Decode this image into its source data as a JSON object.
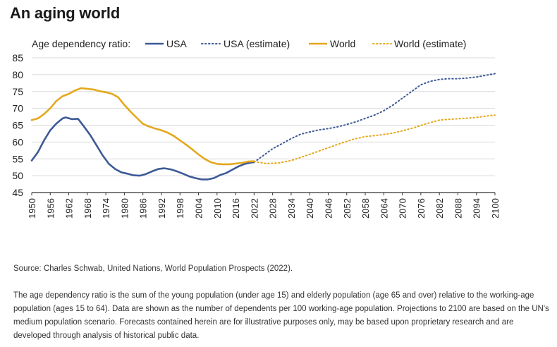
{
  "page": {
    "title": "An aging world",
    "source": "Source: Charles Schwab, United Nations, World Population Prospects (2022).",
    "note": "The age dependency ratio is the sum of the young population (under age 15) and elderly population (age 65 and over) relative to the working-age population (ages 15 to 64). Data are shown as the number of dependents per 100 working-age population. Projections to 2100 are based on the UN's medium population scenario. Forecasts contained herein are for illustrative purposes only, may be based upon proprietary research and are developed through analysis of historical public data."
  },
  "chart_data": {
    "type": "line",
    "legend_title": "Age dependency ratio:",
    "legend_position": "top",
    "xlim": [
      1950,
      2100
    ],
    "ylim": [
      45,
      85
    ],
    "y_ticks": [
      45,
      50,
      55,
      60,
      65,
      70,
      75,
      80,
      85
    ],
    "x_ticks": [
      1950,
      1956,
      1962,
      1968,
      1974,
      1980,
      1986,
      1992,
      1998,
      2004,
      2010,
      2016,
      2022,
      2028,
      2034,
      2040,
      2046,
      2052,
      2058,
      2064,
      2070,
      2076,
      2082,
      2088,
      2094,
      2100
    ],
    "grid": "horizontal",
    "colors": {
      "usa": "#3d5a96",
      "world": "#e4a81d",
      "grid": "#d9d9d9",
      "axis": "#333333"
    },
    "series": [
      {
        "name": "USA",
        "style": "solid",
        "color": "#3d5a96",
        "x": [
          1950,
          1952,
          1954,
          1956,
          1958,
          1960,
          1961,
          1963,
          1965,
          1967,
          1969,
          1971,
          1973,
          1975,
          1977,
          1979,
          1981,
          1983,
          1985,
          1987,
          1989,
          1991,
          1993,
          1995,
          1997,
          1999,
          2001,
          2003,
          2005,
          2007,
          2009,
          2011,
          2013,
          2015,
          2017,
          2019,
          2021,
          2022
        ],
        "y": [
          54.5,
          57,
          60.5,
          63.5,
          65.5,
          67,
          67.3,
          66.8,
          66.9,
          64.5,
          62,
          59,
          56,
          53.5,
          52,
          51,
          50.6,
          50.1,
          50,
          50.5,
          51.3,
          52,
          52.2,
          51.9,
          51.3,
          50.6,
          49.8,
          49.3,
          48.9,
          48.9,
          49.3,
          50.2,
          50.8,
          51.8,
          52.8,
          53.5,
          53.9,
          54
        ]
      },
      {
        "name": "USA (estimate)",
        "style": "dotted",
        "color": "#3d5a96",
        "x": [
          2022,
          2025,
          2028,
          2031,
          2034,
          2037,
          2040,
          2043,
          2046,
          2049,
          2052,
          2055,
          2058,
          2061,
          2064,
          2067,
          2070,
          2073,
          2076,
          2079,
          2082,
          2085,
          2088,
          2091,
          2094,
          2097,
          2100
        ],
        "y": [
          54,
          56,
          58,
          59.5,
          61,
          62.3,
          63,
          63.6,
          64,
          64.5,
          65.2,
          66,
          67,
          68,
          69.3,
          71,
          73,
          75,
          77,
          78,
          78.6,
          78.8,
          78.8,
          79,
          79.3,
          79.8,
          80.3
        ]
      },
      {
        "name": "World",
        "style": "solid",
        "color": "#e4a81d",
        "x": [
          1950,
          1952,
          1954,
          1956,
          1958,
          1960,
          1962,
          1964,
          1966,
          1968,
          1970,
          1972,
          1974,
          1976,
          1978,
          1980,
          1982,
          1984,
          1986,
          1988,
          1990,
          1992,
          1994,
          1996,
          1998,
          2000,
          2002,
          2004,
          2006,
          2008,
          2010,
          2012,
          2014,
          2016,
          2018,
          2020,
          2022
        ],
        "y": [
          66.5,
          67,
          68.3,
          70,
          72.2,
          73.6,
          74.3,
          75.3,
          76,
          75.8,
          75.6,
          75.1,
          74.8,
          74.3,
          73.3,
          71,
          69,
          67.2,
          65.4,
          64.6,
          64,
          63.5,
          62.8,
          61.8,
          60.5,
          59.2,
          57.8,
          56.3,
          55,
          54,
          53.5,
          53.4,
          53.4,
          53.6,
          53.8,
          54.2,
          54.3
        ]
      },
      {
        "name": "World (estimate)",
        "style": "dotted",
        "color": "#e4a81d",
        "x": [
          2022,
          2026,
          2030,
          2034,
          2038,
          2042,
          2046,
          2050,
          2054,
          2058,
          2062,
          2066,
          2070,
          2074,
          2078,
          2082,
          2086,
          2090,
          2094,
          2098,
          2100
        ],
        "y": [
          54.2,
          53.6,
          53.8,
          54.5,
          55.7,
          57,
          58.3,
          59.6,
          60.8,
          61.6,
          62,
          62.5,
          63.3,
          64.3,
          65.5,
          66.5,
          66.8,
          67,
          67.3,
          67.8,
          68
        ]
      }
    ]
  }
}
